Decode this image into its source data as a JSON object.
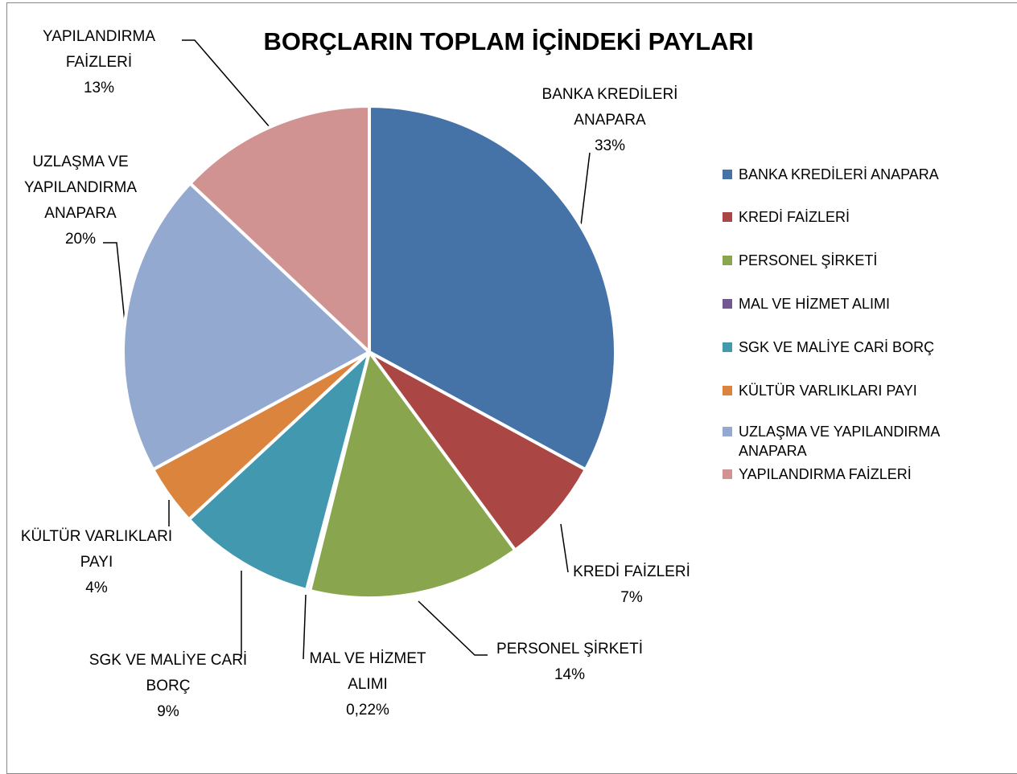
{
  "chart_data": {
    "type": "pie",
    "title": "BORÇLARIN TOPLAM İÇİNDEKİ PAYLARI",
    "categories": [
      "BANKA KREDİLERİ ANAPARA",
      "KREDİ FAİZLERİ",
      "PERSONEL ŞİRKETİ",
      "MAL VE HİZMET ALIMI",
      "SGK VE MALİYE CARİ BORÇ",
      "KÜLTÜR VARLIKLARI PAYI",
      "UZLAŞMA VE YAPILANDIRMA ANAPARA",
      "YAPILANDIRMA FAİZLERİ"
    ],
    "values": [
      33,
      7,
      14,
      0.22,
      9,
      4,
      20,
      13
    ],
    "value_labels": [
      "33%",
      "7%",
      "14%",
      "0,22%",
      "9%",
      "4%",
      "20%",
      "13%"
    ],
    "colors": [
      "#4572a7",
      "#aa4643",
      "#89a54e",
      "#71588f",
      "#4198af",
      "#db843d",
      "#93a9cf",
      "#d19392"
    ],
    "legend": "right"
  }
}
